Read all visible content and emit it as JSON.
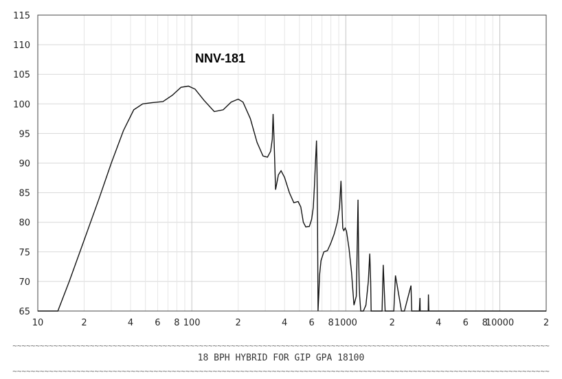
{
  "chart_data": {
    "type": "line",
    "title": "NNV-181",
    "xscale": "log",
    "xlim": [
      10,
      20000
    ],
    "ylim": [
      65,
      115
    ],
    "grid": true,
    "yticks": [
      65,
      70,
      75,
      80,
      85,
      90,
      95,
      100,
      105,
      110,
      115
    ],
    "xtick_labels": [
      {
        "value": 10,
        "label": "10"
      },
      {
        "value": 20,
        "label": "2"
      },
      {
        "value": 40,
        "label": "4"
      },
      {
        "value": 60,
        "label": "6"
      },
      {
        "value": 80,
        "label": "8"
      },
      {
        "value": 100,
        "label": "100"
      },
      {
        "value": 200,
        "label": "2"
      },
      {
        "value": 400,
        "label": "4"
      },
      {
        "value": 600,
        "label": "6"
      },
      {
        "value": 800,
        "label": "8"
      },
      {
        "value": 1000,
        "label": "1000"
      },
      {
        "value": 2000,
        "label": "2"
      },
      {
        "value": 4000,
        "label": "4"
      },
      {
        "value": 6000,
        "label": "6"
      },
      {
        "value": 8000,
        "label": "8"
      },
      {
        "value": 10000,
        "label": "10000"
      },
      {
        "value": 20000,
        "label": "2"
      }
    ],
    "series": [
      {
        "x": [
          10,
          13.5,
          16,
          20,
          25,
          30,
          36,
          42,
          48,
          55,
          65,
          75,
          85,
          95,
          105,
          120,
          140,
          160,
          180,
          200,
          215,
          240,
          265,
          290,
          310,
          325,
          333,
          337,
          342,
          350,
          365,
          380,
          400,
          430,
          460,
          490,
          510,
          530,
          550,
          580,
          600,
          615,
          625,
          635,
          645,
          650,
          655,
          660,
          668,
          675,
          690,
          720,
          760,
          800,
          840,
          880,
          910,
          930,
          945,
          955,
          970,
          990,
          1010,
          1050,
          1090,
          1130,
          1170,
          1200,
          1210,
          1220,
          1230,
          1250,
          1300,
          1350,
          1400,
          1430,
          1450,
          1460,
          1480,
          1500,
          1550,
          1650,
          1700,
          1720,
          1750,
          1800,
          2000,
          2020,
          2030,
          2050,
          2100,
          2300,
          2330,
          2340,
          2360,
          2400,
          2650,
          2680,
          2690,
          2710,
          2750,
          3000,
          3030,
          3040,
          3060,
          3100,
          3400,
          3430,
          3440,
          3460,
          3500,
          20000
        ],
        "y": [
          65,
          65,
          70,
          77,
          84,
          90,
          95.5,
          99,
          100,
          100.2,
          100.4,
          101.5,
          102.8,
          103,
          102.5,
          100.6,
          98.7,
          99,
          100.3,
          100.8,
          100.3,
          97.5,
          93.5,
          91.2,
          91,
          92,
          94,
          98.3,
          94,
          85.5,
          88,
          88.7,
          87.6,
          85,
          83.3,
          83.5,
          82.6,
          80,
          79.2,
          79.3,
          80.5,
          82.5,
          86,
          90,
          93.8,
          89,
          80,
          65,
          68,
          71,
          73.5,
          75,
          75.2,
          76.5,
          78,
          80,
          82.5,
          87,
          82.5,
          79,
          78.6,
          79,
          78.5,
          75.5,
          71.5,
          66,
          67.5,
          83.8,
          75,
          70,
          67.5,
          65,
          65,
          66,
          70,
          74.7,
          70,
          65,
          65,
          65,
          65,
          65,
          65,
          65,
          72.8,
          65,
          65,
          65,
          65,
          65,
          71,
          65,
          65,
          65,
          65,
          65,
          69.3,
          65,
          65,
          65,
          65,
          65,
          67.2,
          65,
          65,
          65,
          65,
          65,
          67.8,
          65,
          65,
          65
        ]
      }
    ]
  },
  "footer": {
    "tilde_rule": "~~~~~~~~~~~~~~~~~~~~~~~~~~~~~~~~~~~~~~~~~~~~~~~~~~~~~~~~~~~~~~~~~~~~~~~~~~~~~~~~~~~~~~~~~~~~~~~~~~~~~~~~~~~~~~~~~~~~~~",
    "caption": "18 BPH HYBRID FOR GIP GPA 18100"
  }
}
